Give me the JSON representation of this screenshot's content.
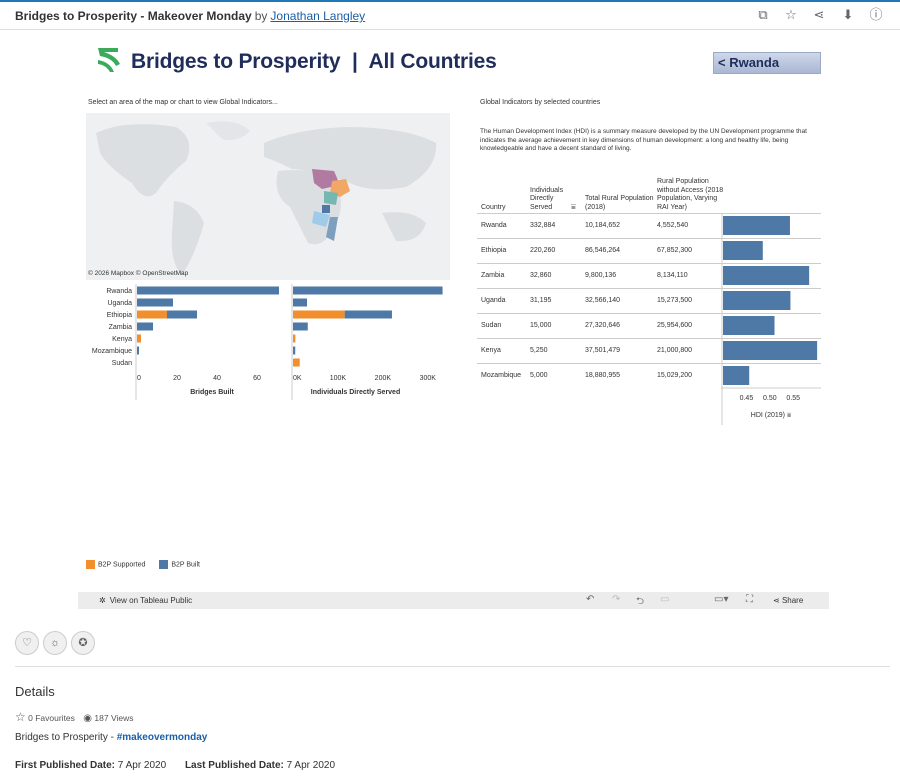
{
  "viz": {
    "title": "Bridges to Prosperity - Makeover Monday",
    "by": "by",
    "author": "Jonathan Langley"
  },
  "top_icons": [
    "copy-icon",
    "star-icon",
    "share-icon",
    "download-icon",
    "info-icon"
  ],
  "dashboard": {
    "title_brand": "Bridges to Prosperity",
    "title_sep": "|",
    "title_scope": "All Countries",
    "back_button": "< Rwanda",
    "map_instruction": "Select an area of the map or chart to view Global Indicators...",
    "map_attribution": "© 2026 Mapbox  © OpenStreetMap",
    "indicators_title": "Global Indicators by selected countries",
    "hdi_note": "The Human Development Index (HDI) is a summary measure developed by the UN Development programme that indicates the average achievement in key dimensions of human development: a long and healthy life, being knowledgeable and have a decent standard of living.",
    "legend": [
      {
        "label": "B2P Supported",
        "color": "#f28e2b"
      },
      {
        "label": "B2P Built",
        "color": "#4e79a7"
      }
    ]
  },
  "chart_data": [
    {
      "type": "bar",
      "orientation": "horizontal",
      "stacked": true,
      "xlabel": "Bridges Built",
      "categories": [
        "Rwanda",
        "Uganda",
        "Ethiopia",
        "Zambia",
        "Kenya",
        "Mozambique",
        "Sudan"
      ],
      "series": [
        {
          "name": "B2P Supported",
          "values": [
            0,
            0,
            15,
            0,
            2,
            0,
            0
          ]
        },
        {
          "name": "B2P Built",
          "values": [
            71,
            18,
            15,
            8,
            0,
            1,
            0
          ]
        }
      ],
      "xticks": [
        "0",
        "20",
        "40",
        "60"
      ],
      "xlim": [
        0,
        75
      ]
    },
    {
      "type": "bar",
      "orientation": "horizontal",
      "stacked": true,
      "xlabel": "Individuals Directly Served",
      "categories": [
        "Rwanda",
        "Uganda",
        "Ethiopia",
        "Zambia",
        "Kenya",
        "Mozambique",
        "Sudan"
      ],
      "series": [
        {
          "name": "B2P Supported",
          "values": [
            0,
            0,
            115000,
            0,
            5250,
            0,
            15000
          ]
        },
        {
          "name": "B2P Built",
          "values": [
            332884,
            31195,
            105260,
            32860,
            0,
            5000,
            0
          ]
        }
      ],
      "xticks": [
        "0K",
        "100K",
        "200K",
        "300K"
      ],
      "xlim": [
        0,
        345000
      ]
    },
    {
      "type": "bar",
      "orientation": "horizontal",
      "xlabel": "HDI (2019)",
      "categories": [
        "Rwanda",
        "Ethiopia",
        "Zambia",
        "Uganda",
        "Sudan",
        "Kenya",
        "Mozambique"
      ],
      "values": [
        0.543,
        0.485,
        0.584,
        0.544,
        0.51,
        0.601,
        0.456
      ],
      "xticks": [
        "0.45",
        "0.50",
        "0.55"
      ],
      "xlim": [
        0.45,
        0.6
      ]
    }
  ],
  "table": {
    "headers": [
      "Country",
      "Individuals Directly Served",
      "Total Rural Population (2018)",
      "Rural Population without Access (2018 Population, Varying RAI Year)"
    ],
    "rows": [
      [
        "Rwanda",
        "332,884",
        "10,184,652",
        "4,552,540"
      ],
      [
        "Ethiopia",
        "220,260",
        "86,546,264",
        "67,852,300"
      ],
      [
        "Zambia",
        "32,860",
        "9,800,136",
        "8,134,110"
      ],
      [
        "Uganda",
        "31,195",
        "32,566,140",
        "15,273,500"
      ],
      [
        "Sudan",
        "15,000",
        "27,320,646",
        "25,954,600"
      ],
      [
        "Kenya",
        "5,250",
        "37,501,479",
        "21,000,800"
      ],
      [
        "Mozambique",
        "5,000",
        "18,880,955",
        "15,029,200"
      ]
    ]
  },
  "toolbar": {
    "view_on": "View on Tableau Public",
    "share": "Share"
  },
  "details": {
    "heading": "Details",
    "favourites": "0 Favourites",
    "views": "187 Views",
    "desc_prefix": "Bridges to Prosperity - ",
    "hashtag": "#makeovermonday",
    "first_label": "First Published Date:",
    "first_value": "7 Apr 2020",
    "last_label": "Last Published Date:",
    "last_value": "7 Apr 2020"
  },
  "colors": {
    "built": "#4e79a7",
    "supported": "#f28e2b",
    "brand": "#1f2d5a",
    "link": "#1b5fa8"
  }
}
